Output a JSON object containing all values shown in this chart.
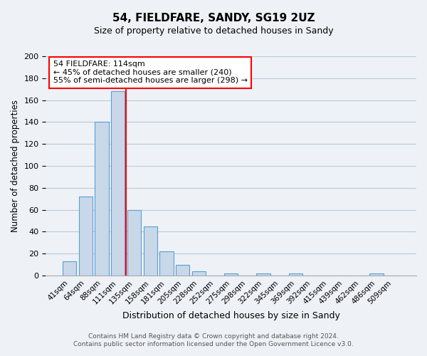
{
  "title": "54, FIELDFARE, SANDY, SG19 2UZ",
  "subtitle": "Size of property relative to detached houses in Sandy",
  "xlabel": "Distribution of detached houses by size in Sandy",
  "ylabel": "Number of detached properties",
  "footnote1": "Contains HM Land Registry data © Crown copyright and database right 2024.",
  "footnote2": "Contains public sector information licensed under the Open Government Licence v3.0.",
  "bin_labels": [
    "41sqm",
    "64sqm",
    "88sqm",
    "111sqm",
    "135sqm",
    "158sqm",
    "181sqm",
    "205sqm",
    "228sqm",
    "252sqm",
    "275sqm",
    "298sqm",
    "322sqm",
    "345sqm",
    "369sqm",
    "392sqm",
    "415sqm",
    "439sqm",
    "462sqm",
    "486sqm",
    "509sqm"
  ],
  "bar_values": [
    13,
    72,
    140,
    168,
    60,
    45,
    22,
    10,
    4,
    0,
    2,
    0,
    2,
    0,
    2,
    0,
    0,
    0,
    0,
    2,
    0
  ],
  "bar_color": "#c8d8e8",
  "bar_edge_color": "#5a9fd4",
  "ylim": [
    0,
    200
  ],
  "yticks": [
    0,
    20,
    40,
    60,
    80,
    100,
    120,
    140,
    160,
    180,
    200
  ],
  "property_label": "54 FIELDFARE: 114sqm",
  "annotation_line1": "← 45% of detached houses are smaller (240)",
  "annotation_line2": "55% of semi-detached houses are larger (298) →",
  "vline_bin_index": 3.5
}
